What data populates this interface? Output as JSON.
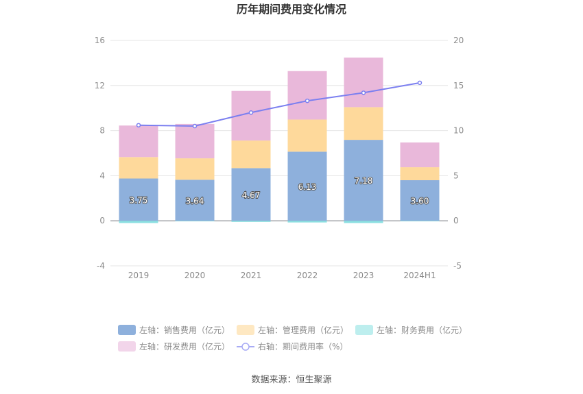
{
  "chart_data": {
    "type": "bar",
    "title": "历年期间费用变化情况",
    "categories": [
      "2019",
      "2020",
      "2021",
      "2022",
      "2023",
      "2024H1"
    ],
    "series": [
      {
        "name": "左轴：销售费用（亿元）",
        "axis": "left",
        "kind": "bar",
        "color": "#8eb0dc",
        "values": [
          3.75,
          3.64,
          4.67,
          6.13,
          7.18,
          3.6
        ]
      },
      {
        "name": "左轴：管理费用（亿元）",
        "axis": "left",
        "kind": "bar",
        "color": "#fed99b",
        "values": [
          1.9,
          1.9,
          2.45,
          2.85,
          2.9,
          1.15
        ]
      },
      {
        "name": "左轴：财务费用（亿元）",
        "axis": "left",
        "kind": "bar",
        "color": "#8ce0e2",
        "values": [
          -0.2,
          -0.05,
          -0.1,
          -0.15,
          -0.2,
          -0.05
        ]
      },
      {
        "name": "左轴：研发费用（亿元）",
        "axis": "left",
        "kind": "bar",
        "color": "#e9b8da",
        "values": [
          2.8,
          3.05,
          4.4,
          4.3,
          4.4,
          2.2
        ]
      },
      {
        "name": "右轴：期间费用率（%）",
        "axis": "right",
        "kind": "line",
        "color": "#7b7ff0",
        "values": [
          10.6,
          10.5,
          12.0,
          13.3,
          14.2,
          15.3
        ]
      }
    ],
    "data_labels": [
      "3.75",
      "3.64",
      "4.67",
      "6.13",
      "7.18",
      "3.60"
    ],
    "left_axis": {
      "min": -4,
      "max": 16,
      "ticks": [
        "-4",
        "0",
        "4",
        "8",
        "12",
        "16"
      ]
    },
    "right_axis": {
      "min": -5,
      "max": 20,
      "ticks": [
        "-5",
        "0",
        "5",
        "10",
        "15",
        "20"
      ]
    },
    "grid": true,
    "legend_position": "bottom"
  },
  "source": "数据来源：恒生聚源"
}
